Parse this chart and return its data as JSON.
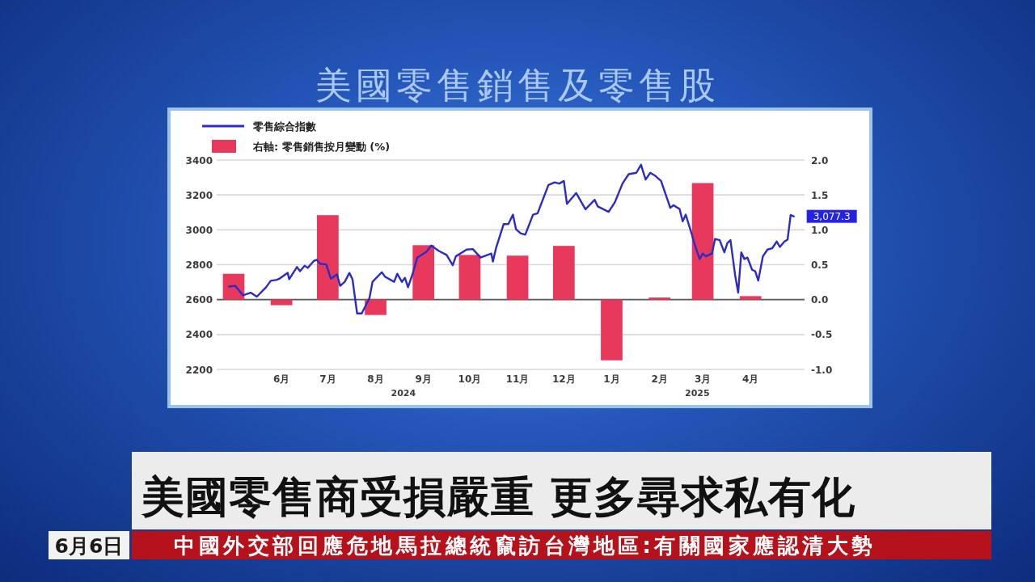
{
  "chart_data": {
    "type": "line",
    "title": "美國零售銷售及零售股",
    "legend": "top left",
    "grid": "y",
    "xlim": [
      "2024-05-04",
      "2025-05-20"
    ],
    "xticks": [
      {
        "value": "2024-06-15",
        "label": "6月"
      },
      {
        "value": "2024-07-15",
        "label": "7月"
      },
      {
        "value": "2024-08-15",
        "label": "8月"
      },
      {
        "value": "2024-09-15",
        "label": "9月"
      },
      {
        "value": "2024-10-15",
        "label": "10月"
      },
      {
        "value": "2024-11-15",
        "label": "11月"
      },
      {
        "value": "2024-12-15",
        "label": "12月"
      },
      {
        "value": "2025-01-15",
        "label": "1月"
      },
      {
        "value": "2025-02-15",
        "label": "2月"
      },
      {
        "value": "2025-03-15",
        "label": "3月"
      },
      {
        "value": "2025-04-15",
        "label": "4月"
      }
    ],
    "ylim": [
      2200,
      3400
    ],
    "yticks": [
      2200,
      2400,
      2600,
      2800,
      3000,
      3200,
      3400
    ],
    "y2lim": [
      -1,
      2
    ],
    "y2ticks": [
      {
        "value": -1,
        "label": "-1.0"
      },
      {
        "value": -0.5,
        "label": "-0.5"
      },
      {
        "value": 0,
        "label": "0.0"
      },
      {
        "value": 0.5,
        "label": "0.5"
      },
      {
        "value": 1,
        "label": "1.0"
      },
      {
        "value": 1.5,
        "label": "1.5"
      },
      {
        "value": 2,
        "label": "2.0"
      }
    ],
    "ref_lines": [
      {
        "axis": "y2",
        "value": 0,
        "color": "#5a5a5a"
      }
    ],
    "series": [
      {
        "name": "零售綜合指數",
        "color": "#2b2bc8",
        "x": [
          "2024-05-12",
          "2024-05-16",
          "2024-05-21",
          "2024-05-26",
          "2024-05-30",
          "2024-06-05",
          "2024-06-08",
          "2024-06-12",
          "2024-06-14",
          "2024-06-19",
          "2024-06-20",
          "2024-06-25",
          "2024-06-27",
          "2024-06-30",
          "2024-07-02",
          "2024-07-06",
          "2024-07-08",
          "2024-07-10",
          "2024-07-14",
          "2024-07-17",
          "2024-07-21",
          "2024-07-23",
          "2024-07-26",
          "2024-07-29",
          "2024-07-31",
          "2024-08-03",
          "2024-08-06",
          "2024-08-11",
          "2024-08-13",
          "2024-08-19",
          "2024-08-21",
          "2024-08-27",
          "2024-08-29",
          "2024-09-01",
          "2024-09-03",
          "2024-09-05",
          "2024-09-08",
          "2024-09-11",
          "2024-09-17",
          "2024-09-20",
          "2024-09-25",
          "2024-09-30",
          "2024-10-04",
          "2024-10-06",
          "2024-10-13",
          "2024-10-17",
          "2024-10-22",
          "2024-10-29",
          "2024-10-30",
          "2024-11-01",
          "2024-11-06",
          "2024-11-09",
          "2024-11-12",
          "2024-11-14",
          "2024-11-17",
          "2024-11-20",
          "2024-11-25",
          "2024-11-28",
          "2024-12-05",
          "2024-12-09",
          "2024-12-12",
          "2024-12-15",
          "2024-12-17",
          "2024-12-23",
          "2024-12-29",
          "2025-01-04",
          "2025-01-06",
          "2025-01-13",
          "2025-01-17",
          "2025-01-22",
          "2025-01-26",
          "2025-01-31",
          "2025-02-03",
          "2025-02-06",
          "2025-02-09",
          "2025-02-12",
          "2025-02-16",
          "2025-02-22",
          "2025-02-24",
          "2025-02-28",
          "2025-03-02",
          "2025-03-04",
          "2025-03-08",
          "2025-03-10",
          "2025-03-13",
          "2025-03-15",
          "2025-03-17",
          "2025-03-21",
          "2025-03-23",
          "2025-03-26",
          "2025-03-29",
          "2025-03-31",
          "2025-04-02",
          "2025-04-05",
          "2025-04-07",
          "2025-04-09",
          "2025-04-11",
          "2025-04-13",
          "2025-04-16",
          "2025-04-18",
          "2025-04-20",
          "2025-04-23",
          "2025-04-26",
          "2025-04-29",
          "2025-05-02",
          "2025-05-04",
          "2025-05-07",
          "2025-05-09",
          "2025-05-11",
          "2025-05-13"
        ],
        "values": [
          2675,
          2679,
          2625,
          2640,
          2617,
          2671,
          2708,
          2714,
          2722,
          2754,
          2717,
          2787,
          2763,
          2794,
          2782,
          2822,
          2828,
          2806,
          2802,
          2720,
          2745,
          2679,
          2702,
          2753,
          2717,
          2521,
          2521,
          2609,
          2702,
          2757,
          2732,
          2702,
          2748,
          2702,
          2725,
          2671,
          2748,
          2841,
          2874,
          2910,
          2879,
          2856,
          2797,
          2848,
          2887,
          2890,
          2841,
          2864,
          2818,
          2894,
          3033,
          3033,
          3087,
          3003,
          2980,
          2972,
          3087,
          3095,
          3257,
          3272,
          3265,
          3280,
          3149,
          3211,
          3118,
          3172,
          3134,
          3103,
          3157,
          3265,
          3319,
          3327,
          3373,
          3288,
          3327,
          3311,
          3280,
          3126,
          3141,
          3120,
          3049,
          3087,
          2972,
          2910,
          2833,
          2864,
          2848,
          2864,
          2948,
          2941,
          2871,
          2925,
          2941,
          2740,
          2640,
          2871,
          2833,
          2841,
          2771,
          2763,
          2709,
          2848,
          2887,
          2894,
          2933,
          2902,
          2933,
          2944,
          3085,
          3077.3
        ]
      },
      {
        "name": "右軸: 零售銷售按月變動 (%)",
        "type": "bar",
        "axis": "y2",
        "color": "#e8385c",
        "x": [
          "2024-05-15",
          "2024-06-15",
          "2024-07-15",
          "2024-08-15",
          "2024-09-15",
          "2024-10-15",
          "2024-11-15",
          "2024-12-15",
          "2025-01-15",
          "2025-02-15",
          "2025-03-15",
          "2025-04-15"
        ],
        "values": [
          0.37,
          -0.08,
          1.21,
          -0.22,
          0.78,
          0.64,
          0.63,
          0.77,
          -0.87,
          0.03,
          1.67,
          0.05
        ]
      }
    ],
    "annotations": [
      {
        "text": "3,077.3",
        "x": "2025-05-13",
        "y": 3077.3
      },
      "2024",
      "2025",
      "美國零售商受損嚴重 更多尋求私有化",
      "中國外交部回應危地馬拉總統竄訪台灣地區:有關國家應認清大勢",
      "6月6日"
    ]
  }
}
